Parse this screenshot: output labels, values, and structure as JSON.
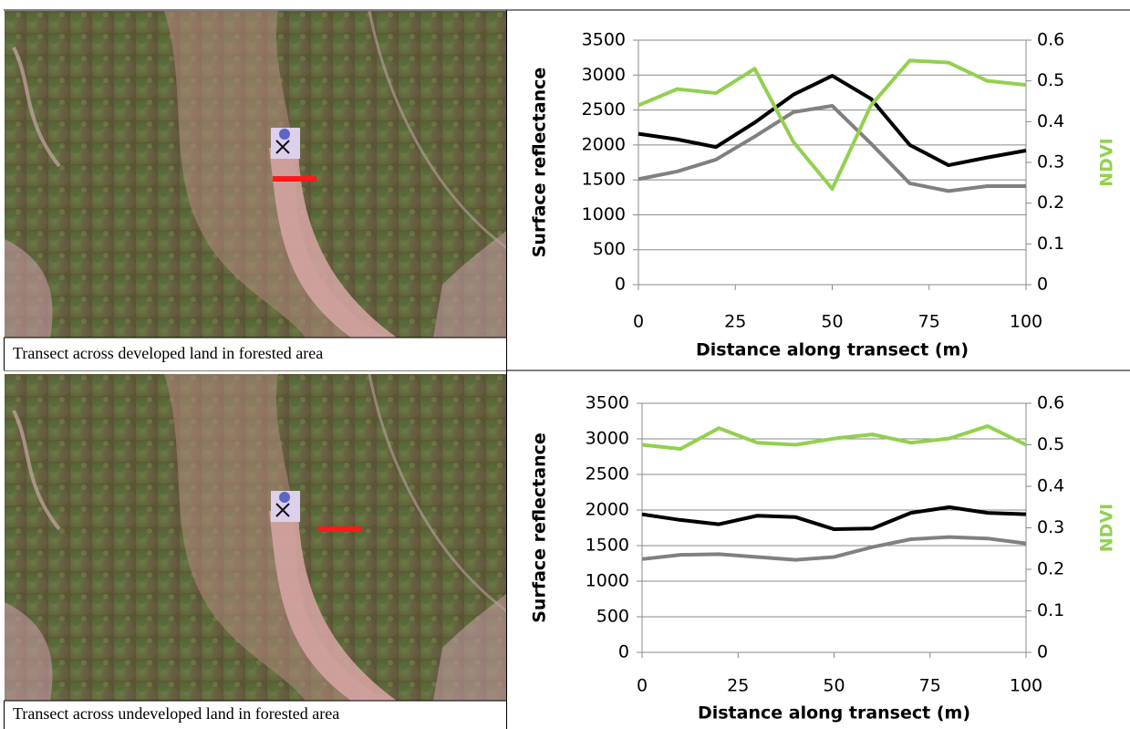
{
  "captions": [
    "Transect across developed land in forested area",
    "Transect across undeveloped land in forested area"
  ],
  "chart_data": [
    {
      "type": "line",
      "x_label": "Distance along transect (m)",
      "y_label": "Surface reflectance",
      "y2_label": "NDVI",
      "x": [
        0,
        10,
        20,
        30,
        40,
        50,
        60,
        70,
        80,
        90,
        100
      ],
      "xlim": [
        0,
        100
      ],
      "xticks": [
        0,
        25,
        50,
        75,
        100
      ],
      "ylim": [
        0,
        3500
      ],
      "yticks": [
        0,
        500,
        1000,
        1500,
        2000,
        2500,
        3000,
        3500
      ],
      "y2lim": [
        0,
        0.6
      ],
      "y2ticks": [
        0,
        0.1,
        0.2,
        0.3,
        0.4,
        0.5,
        0.6
      ],
      "grid": true,
      "series": [
        {
          "color": "#000000",
          "values": [
            2160,
            2080,
            1970,
            2320,
            2720,
            2990,
            2660,
            2000,
            1710,
            1820,
            1920
          ]
        },
        {
          "color": "#808080",
          "values": [
            1510,
            1620,
            1790,
            2120,
            2470,
            2560,
            2020,
            1450,
            1340,
            1410,
            1410
          ]
        },
        {
          "color": "#92d050",
          "axis": "y2",
          "values": [
            0.44,
            0.48,
            0.47,
            0.53,
            0.35,
            0.235,
            0.44,
            0.55,
            0.545,
            0.5,
            0.49
          ]
        }
      ]
    },
    {
      "type": "line",
      "x_label": "Distance along transect (m)",
      "y_label": "Surface reflectance",
      "y2_label": "NDVI",
      "x": [
        0,
        10,
        20,
        30,
        40,
        50,
        60,
        70,
        80,
        90,
        100
      ],
      "xlim": [
        0,
        100
      ],
      "xticks": [
        0,
        25,
        50,
        75,
        100
      ],
      "ylim": [
        0,
        3500
      ],
      "yticks": [
        0,
        500,
        1000,
        1500,
        2000,
        2500,
        3000,
        3500
      ],
      "y2lim": [
        0,
        0.6
      ],
      "y2ticks": [
        0,
        0.1,
        0.2,
        0.3,
        0.4,
        0.5,
        0.6
      ],
      "grid": true,
      "series": [
        {
          "color": "#000000",
          "values": [
            1940,
            1860,
            1800,
            1920,
            1900,
            1730,
            1740,
            1960,
            2040,
            1960,
            1940
          ]
        },
        {
          "color": "#808080",
          "values": [
            1310,
            1370,
            1380,
            1340,
            1300,
            1340,
            1480,
            1590,
            1620,
            1600,
            1530
          ]
        },
        {
          "color": "#92d050",
          "axis": "y2",
          "values": [
            0.5,
            0.49,
            0.54,
            0.505,
            0.5,
            0.515,
            0.525,
            0.505,
            0.515,
            0.545,
            0.5
          ]
        }
      ]
    }
  ]
}
